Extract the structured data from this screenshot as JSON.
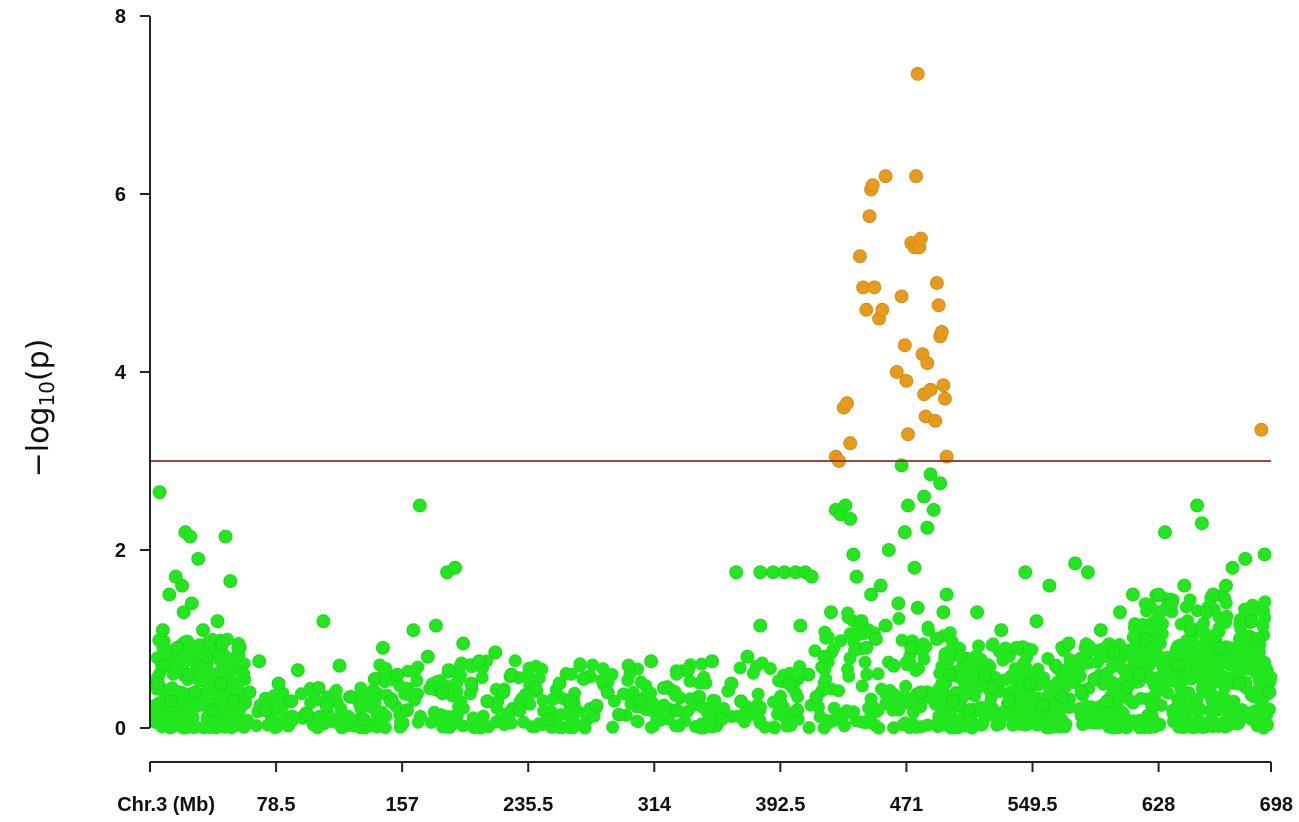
{
  "chart_data": {
    "type": "scatter",
    "title": "",
    "xlabel": "Chr.3 (Mb)",
    "ylabel": {
      "prefix": "−log",
      "subscript": "10",
      "suffix": "(p)"
    },
    "xlim": [
      0,
      698
    ],
    "ylim": [
      0,
      8
    ],
    "x_ticks": [
      {
        "value": 0,
        "label": "Chr.3 (Mb)"
      },
      {
        "value": 78.5,
        "label": "78.5"
      },
      {
        "value": 157,
        "label": "157"
      },
      {
        "value": 235.5,
        "label": "235.5"
      },
      {
        "value": 314,
        "label": "314"
      },
      {
        "value": 392.5,
        "label": "392.5"
      },
      {
        "value": 471,
        "label": "471"
      },
      {
        "value": 549.5,
        "label": "549.5"
      },
      {
        "value": 628,
        "label": "628"
      },
      {
        "value": 698,
        "label": "698"
      }
    ],
    "y_ticks": [
      {
        "value": 0,
        "label": "0"
      },
      {
        "value": 2,
        "label": "2"
      },
      {
        "value": 4,
        "label": "4"
      },
      {
        "value": 6,
        "label": "6"
      },
      {
        "value": 8,
        "label": "8"
      }
    ],
    "threshold": 3,
    "threshold_color": "#8B2E2E",
    "grid": false,
    "legend": false,
    "colors": {
      "below_threshold": "#22E61E",
      "above_threshold": "#E89A1A",
      "axis": "#222222"
    },
    "series": [
      {
        "color": "below_threshold",
        "points": [
          [
            6,
            2.65
          ],
          [
            20,
            1.6
          ],
          [
            22,
            2.2
          ],
          [
            25,
            2.15
          ],
          [
            30,
            1.9
          ],
          [
            47,
            2.15
          ],
          [
            50,
            1.65
          ],
          [
            8,
            1.1
          ],
          [
            12,
            1.5
          ],
          [
            16,
            1.7
          ],
          [
            21,
            1.3
          ],
          [
            26,
            1.4
          ],
          [
            33,
            1.1
          ],
          [
            37,
            0.9
          ],
          [
            42,
            1.2
          ],
          [
            45,
            0.95
          ],
          [
            55,
            0.9
          ],
          [
            5,
            0.5
          ],
          [
            9,
            0.7
          ],
          [
            13,
            0.3
          ],
          [
            17,
            0.9
          ],
          [
            24,
            0.6
          ],
          [
            28,
            0.4
          ],
          [
            35,
            0.8
          ],
          [
            39,
            0.2
          ],
          [
            44,
            0.5
          ],
          [
            52,
            0.3
          ],
          [
            58,
            0.6
          ],
          [
            62,
            0.4
          ],
          [
            68,
            0.75
          ],
          [
            72,
            0.2
          ],
          [
            80,
            0.5
          ],
          [
            88,
            0.3
          ],
          [
            92,
            0.65
          ],
          [
            98,
            0.15
          ],
          [
            105,
            0.45
          ],
          [
            110,
            0.25
          ],
          [
            118,
            0.7
          ],
          [
            108,
            1.2
          ],
          [
            125,
            0.35
          ],
          [
            133,
            0.1
          ],
          [
            140,
            0.55
          ],
          [
            145,
            0.9
          ],
          [
            150,
            0.3
          ],
          [
            154,
            0.6
          ],
          [
            160,
            0.2
          ],
          [
            164,
            1.1
          ],
          [
            168,
            2.5
          ],
          [
            173,
            0.8
          ],
          [
            178,
            1.15
          ],
          [
            182,
            0.4
          ],
          [
            186,
            0.65
          ],
          [
            185,
            1.75
          ],
          [
            190,
            1.8
          ],
          [
            195,
            0.95
          ],
          [
            200,
            0.5
          ],
          [
            205,
            0.75
          ],
          [
            210,
            0.3
          ],
          [
            215,
            0.85
          ],
          [
            220,
            0.4
          ],
          [
            225,
            0.6
          ],
          [
            230,
            0.2
          ],
          [
            240,
            0.45
          ],
          [
            248,
            0.1
          ],
          [
            255,
            0.5
          ],
          [
            262,
            0.3
          ],
          [
            270,
            0.55
          ],
          [
            278,
            0.25
          ],
          [
            285,
            0.4
          ],
          [
            292,
            0.15
          ],
          [
            298,
            0.7
          ],
          [
            305,
            0.3
          ],
          [
            312,
            0.75
          ],
          [
            320,
            0.45
          ],
          [
            328,
            0.2
          ],
          [
            335,
            0.65
          ],
          [
            342,
            0.35
          ],
          [
            350,
            0.75
          ],
          [
            356,
            0.1
          ],
          [
            362,
            0.5
          ],
          [
            368,
            0.3
          ],
          [
            372,
            0.8
          ],
          [
            365,
            1.75
          ],
          [
            380,
            1.75
          ],
          [
            388,
            1.75
          ],
          [
            395,
            1.75
          ],
          [
            402,
            1.75
          ],
          [
            408,
            1.75
          ],
          [
            412,
            1.7
          ],
          [
            380,
            1.15
          ],
          [
            405,
            1.15
          ],
          [
            398,
            0.5
          ],
          [
            403,
            0.2
          ],
          [
            410,
            0.6
          ],
          [
            415,
            0.35
          ],
          [
            420,
            0.8
          ],
          [
            424,
            1.3
          ],
          [
            427,
            2.45
          ],
          [
            430,
            2.4
          ],
          [
            433,
            2.5
          ],
          [
            436,
            2.35
          ],
          [
            438,
            1.95
          ],
          [
            440,
            1.7
          ],
          [
            443,
            1.2
          ],
          [
            446,
            0.9
          ],
          [
            449,
            1.5
          ],
          [
            452,
            1.0
          ],
          [
            455,
            1.6
          ],
          [
            458,
            1.15
          ],
          [
            460,
            2.0
          ],
          [
            463,
            0.7
          ],
          [
            466,
            1.4
          ],
          [
            468,
            2.95
          ],
          [
            470,
            2.2
          ],
          [
            472,
            2.5
          ],
          [
            474,
            0.9
          ],
          [
            476,
            1.8
          ],
          [
            478,
            1.35
          ],
          [
            480,
            0.4
          ],
          [
            482,
            2.6
          ],
          [
            484,
            2.25
          ],
          [
            486,
            2.85
          ],
          [
            488,
            2.45
          ],
          [
            490,
            1.0
          ],
          [
            492,
            2.75
          ],
          [
            494,
            1.3
          ],
          [
            496,
            1.5
          ],
          [
            498,
            0.6
          ],
          [
            500,
            0.3
          ],
          [
            505,
            0.8
          ],
          [
            510,
            0.2
          ],
          [
            515,
            1.3
          ],
          [
            520,
            0.6
          ],
          [
            525,
            0.45
          ],
          [
            530,
            1.1
          ],
          [
            535,
            0.3
          ],
          [
            540,
            0.9
          ],
          [
            545,
            1.75
          ],
          [
            548,
            0.5
          ],
          [
            552,
            1.2
          ],
          [
            556,
            0.25
          ],
          [
            560,
            1.6
          ],
          [
            564,
            0.7
          ],
          [
            568,
            0.35
          ],
          [
            572,
            0.95
          ],
          [
            576,
            1.85
          ],
          [
            580,
            0.4
          ],
          [
            584,
            1.75
          ],
          [
            588,
            0.55
          ],
          [
            592,
            1.1
          ],
          [
            596,
            0.3
          ],
          [
            600,
            0.85
          ],
          [
            604,
            1.3
          ],
          [
            608,
            0.45
          ],
          [
            612,
            1.5
          ],
          [
            616,
            0.6
          ],
          [
            620,
            1.0
          ],
          [
            624,
            0.25
          ],
          [
            628,
            1.5
          ],
          [
            632,
            2.2
          ],
          [
            636,
            1.4
          ],
          [
            640,
            0.7
          ],
          [
            644,
            1.6
          ],
          [
            648,
            1.1
          ],
          [
            652,
            2.5
          ],
          [
            655,
            2.3
          ],
          [
            658,
            1.3
          ],
          [
            662,
            1.5
          ],
          [
            666,
            0.9
          ],
          [
            670,
            1.6
          ],
          [
            674,
            1.8
          ],
          [
            678,
            0.5
          ],
          [
            682,
            1.9
          ],
          [
            686,
            1.2
          ],
          [
            690,
            1.0
          ],
          [
            694,
            1.95
          ],
          [
            697,
            0.4
          ]
        ],
        "dense_bands": [
          {
            "x": [
              3,
              60
            ],
            "y": [
              0,
              1.0
            ],
            "count": 260
          },
          {
            "x": [
              60,
              140
            ],
            "y": [
              0,
              0.45
            ],
            "count": 90
          },
          {
            "x": [
              140,
              230
            ],
            "y": [
              0,
              0.8
            ],
            "count": 110
          },
          {
            "x": [
              230,
              410
            ],
            "y": [
              0,
              0.75
            ],
            "count": 190
          },
          {
            "x": [
              410,
              500
            ],
            "y": [
              0,
              1.3
            ],
            "count": 140
          },
          {
            "x": [
              490,
              698
            ],
            "y": [
              0,
              0.95
            ],
            "count": 520
          },
          {
            "x": [
              610,
              698
            ],
            "y": [
              0.5,
              1.5
            ],
            "count": 160
          }
        ]
      },
      {
        "color": "above_threshold",
        "points": [
          [
            427,
            3.05
          ],
          [
            429,
            3.0
          ],
          [
            432,
            3.6
          ],
          [
            434,
            3.65
          ],
          [
            436,
            3.2
          ],
          [
            442,
            5.3
          ],
          [
            444,
            4.95
          ],
          [
            446,
            4.7
          ],
          [
            448,
            5.75
          ],
          [
            449,
            6.05
          ],
          [
            450,
            6.1
          ],
          [
            451,
            4.95
          ],
          [
            454,
            4.6
          ],
          [
            456,
            4.7
          ],
          [
            458,
            6.2
          ],
          [
            465,
            4.0
          ],
          [
            468,
            4.85
          ],
          [
            470,
            4.3
          ],
          [
            471,
            3.9
          ],
          [
            472,
            3.3
          ],
          [
            474,
            5.45
          ],
          [
            476,
            5.4
          ],
          [
            477,
            6.2
          ],
          [
            478,
            7.35
          ],
          [
            479,
            5.4
          ],
          [
            480,
            5.5
          ],
          [
            481,
            4.2
          ],
          [
            482,
            3.75
          ],
          [
            483,
            3.5
          ],
          [
            484,
            4.1
          ],
          [
            486,
            3.8
          ],
          [
            489,
            3.45
          ],
          [
            490,
            5.0
          ],
          [
            491,
            4.75
          ],
          [
            492,
            4.4
          ],
          [
            493,
            4.45
          ],
          [
            494,
            3.85
          ],
          [
            495,
            3.7
          ],
          [
            496,
            3.05
          ],
          [
            692,
            3.35
          ]
        ]
      }
    ]
  }
}
